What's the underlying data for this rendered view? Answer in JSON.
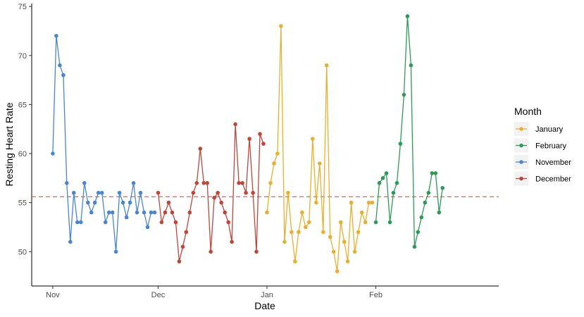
{
  "chart_data": {
    "type": "line",
    "title": "",
    "xlabel": "Date",
    "ylabel": "Resting Heart Rate",
    "x_ticks": [
      "Nov",
      "Dec",
      "Jan",
      "Feb"
    ],
    "x_tick_dates": [
      "2017-11-01",
      "2017-12-01",
      "2018-01-01",
      "2018-02-01"
    ],
    "y_ticks": [
      50,
      55,
      60,
      65,
      70,
      75
    ],
    "xlim": [
      "2017-10-26",
      "2018-03-08"
    ],
    "ylim": [
      46.5,
      75.3
    ],
    "grid": false,
    "reference_line": {
      "y": 55.6,
      "style": "dashed",
      "color": "#d9534f"
    },
    "legend": {
      "title": "Month",
      "position": "right",
      "entries": [
        "January",
        "February",
        "November",
        "December"
      ]
    },
    "series": [
      {
        "name": "November",
        "color": "#4a86d0",
        "x": [
          "2017-11-01",
          "2017-11-02",
          "2017-11-03",
          "2017-11-04",
          "2017-11-05",
          "2017-11-06",
          "2017-11-07",
          "2017-11-08",
          "2017-11-09",
          "2017-11-10",
          "2017-11-11",
          "2017-11-12",
          "2017-11-13",
          "2017-11-14",
          "2017-11-15",
          "2017-11-16",
          "2017-11-17",
          "2017-11-18",
          "2017-11-19",
          "2017-11-20",
          "2017-11-21",
          "2017-11-22",
          "2017-11-23",
          "2017-11-24",
          "2017-11-25",
          "2017-11-26",
          "2017-11-27",
          "2017-11-28",
          "2017-11-29",
          "2017-11-30"
        ],
        "y": [
          60,
          72,
          69,
          68,
          57,
          51,
          56,
          53,
          53,
          57,
          55,
          54,
          55,
          56,
          56,
          53,
          54,
          54,
          50,
          56,
          55,
          53.5,
          55,
          57,
          54,
          56,
          54,
          52.5,
          54,
          54
        ]
      },
      {
        "name": "December",
        "color": "#c0463b",
        "x": [
          "2017-12-01",
          "2017-12-02",
          "2017-12-03",
          "2017-12-04",
          "2017-12-05",
          "2017-12-06",
          "2017-12-07",
          "2017-12-08",
          "2017-12-09",
          "2017-12-10",
          "2017-12-11",
          "2017-12-12",
          "2017-12-13",
          "2017-12-14",
          "2017-12-15",
          "2017-12-16",
          "2017-12-17",
          "2017-12-18",
          "2017-12-19",
          "2017-12-20",
          "2017-12-21",
          "2017-12-22",
          "2017-12-23",
          "2017-12-24",
          "2017-12-25",
          "2017-12-26",
          "2017-12-27",
          "2017-12-28",
          "2017-12-29",
          "2017-12-30",
          "2017-12-31"
        ],
        "y": [
          56,
          53,
          54,
          55,
          54,
          53,
          49,
          50.5,
          52,
          54,
          56,
          57,
          60.5,
          57,
          57,
          50,
          55.5,
          56,
          55,
          54,
          53,
          51,
          63,
          57,
          57,
          56,
          61.5,
          56,
          50,
          62,
          61
        ]
      },
      {
        "name": "January",
        "color": "#e8b031",
        "x": [
          "2018-01-01",
          "2018-01-02",
          "2018-01-03",
          "2018-01-04",
          "2018-01-05",
          "2018-01-06",
          "2018-01-07",
          "2018-01-08",
          "2018-01-09",
          "2018-01-10",
          "2018-01-11",
          "2018-01-12",
          "2018-01-13",
          "2018-01-14",
          "2018-01-15",
          "2018-01-16",
          "2018-01-17",
          "2018-01-18",
          "2018-01-19",
          "2018-01-20",
          "2018-01-21",
          "2018-01-22",
          "2018-01-23",
          "2018-01-24",
          "2018-01-25",
          "2018-01-26",
          "2018-01-27",
          "2018-01-28",
          "2018-01-29",
          "2018-01-30",
          "2018-01-31"
        ],
        "y": [
          54,
          57,
          59,
          60,
          73,
          51,
          56,
          52,
          49,
          52,
          54,
          52.5,
          53,
          61.5,
          55,
          59,
          52,
          69,
          51.5,
          50,
          48,
          53,
          51,
          49,
          55,
          50,
          52,
          54,
          53,
          55,
          55
        ]
      },
      {
        "name": "February",
        "color": "#2e9a58",
        "x": [
          "2018-02-01",
          "2018-02-02",
          "2018-02-03",
          "2018-02-04",
          "2018-02-05",
          "2018-02-06",
          "2018-02-07",
          "2018-02-08",
          "2018-02-09",
          "2018-02-10",
          "2018-02-11",
          "2018-02-12",
          "2018-02-13",
          "2018-02-14",
          "2018-02-15",
          "2018-02-16",
          "2018-02-17",
          "2018-02-18",
          "2018-02-19",
          "2018-02-20"
        ],
        "y": [
          53,
          57,
          57.5,
          58,
          53,
          56,
          57,
          61,
          66,
          74,
          69,
          50.5,
          52,
          53.5,
          55,
          56,
          58,
          58,
          54,
          56.5
        ]
      }
    ]
  }
}
